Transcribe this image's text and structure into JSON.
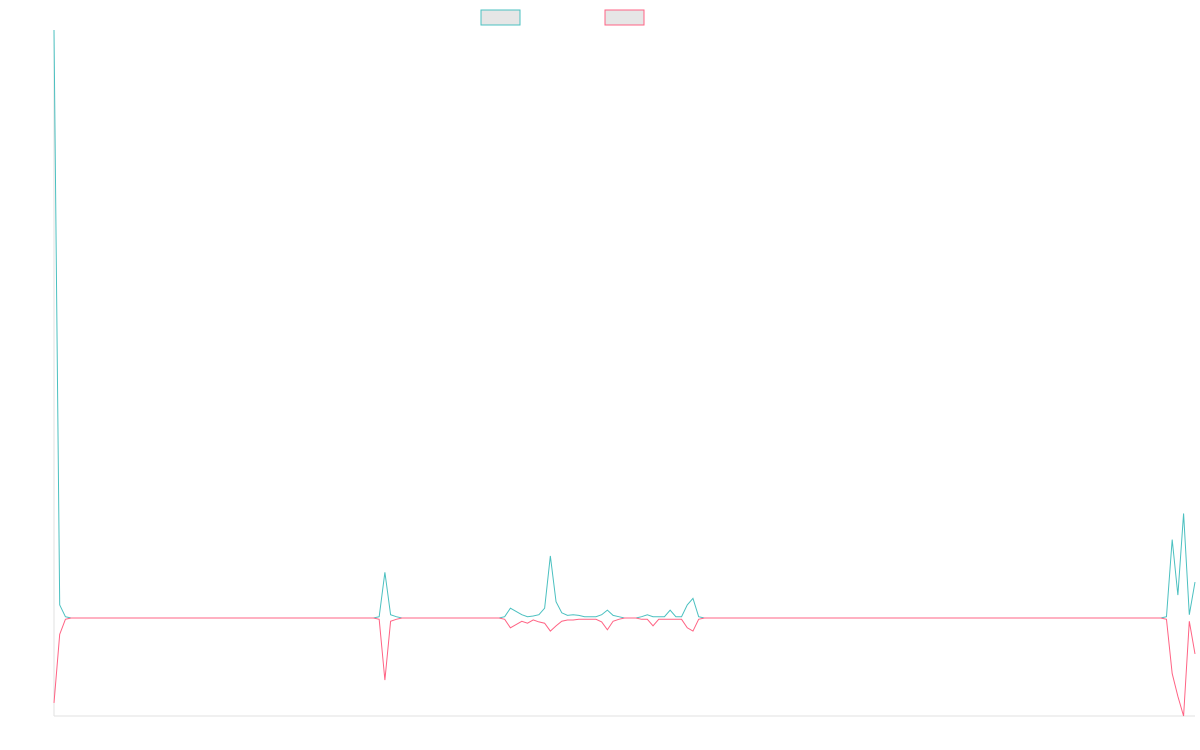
{
  "chart_data": {
    "type": "line",
    "title": "",
    "xlabel": "",
    "ylabel": "",
    "grid": false,
    "legend_position": "top-center",
    "ylim": [
      -1.5,
      9.0
    ],
    "x_count": 201,
    "series": [
      {
        "color": "#4bc0c0",
        "legend_fill": "#e6e6e6",
        "values_sparse": [
          [
            0,
            9.0
          ],
          [
            1,
            0.2
          ],
          [
            2,
            0.02
          ],
          [
            57,
            0.02
          ],
          [
            58,
            0.7
          ],
          [
            59,
            0.05
          ],
          [
            60,
            0.02
          ],
          [
            79,
            0.02
          ],
          [
            80,
            0.15
          ],
          [
            81,
            0.1
          ],
          [
            82,
            0.05
          ],
          [
            83,
            0.02
          ],
          [
            84,
            0.03
          ],
          [
            85,
            0.05
          ],
          [
            86,
            0.15
          ],
          [
            87,
            0.95
          ],
          [
            88,
            0.25
          ],
          [
            89,
            0.08
          ],
          [
            90,
            0.04
          ],
          [
            91,
            0.05
          ],
          [
            92,
            0.04
          ],
          [
            93,
            0.02
          ],
          [
            94,
            0.02
          ],
          [
            95,
            0.02
          ],
          [
            96,
            0.05
          ],
          [
            97,
            0.12
          ],
          [
            98,
            0.04
          ],
          [
            99,
            0.02
          ],
          [
            103,
            0.02
          ],
          [
            104,
            0.05
          ],
          [
            105,
            0.02
          ],
          [
            106,
            0.02
          ],
          [
            107,
            0.02
          ],
          [
            108,
            0.12
          ],
          [
            109,
            0.02
          ],
          [
            110,
            0.02
          ],
          [
            111,
            0.2
          ],
          [
            112,
            0.3
          ],
          [
            113,
            0.02
          ],
          [
            195,
            0.02
          ],
          [
            196,
            1.2
          ],
          [
            197,
            0.35
          ],
          [
            198,
            1.6
          ],
          [
            199,
            0.05
          ],
          [
            200,
            0.55
          ]
        ]
      },
      {
        "color": "#ff6384",
        "legend_fill": "#e6e6e6",
        "values_sparse": [
          [
            0,
            -1.3
          ],
          [
            1,
            -0.25
          ],
          [
            2,
            -0.02
          ],
          [
            57,
            -0.02
          ],
          [
            58,
            -0.95
          ],
          [
            59,
            -0.05
          ],
          [
            60,
            -0.02
          ],
          [
            79,
            -0.02
          ],
          [
            80,
            -0.15
          ],
          [
            81,
            -0.1
          ],
          [
            82,
            -0.05
          ],
          [
            83,
            -0.08
          ],
          [
            84,
            -0.03
          ],
          [
            85,
            -0.06
          ],
          [
            86,
            -0.08
          ],
          [
            87,
            -0.2
          ],
          [
            88,
            -0.12
          ],
          [
            89,
            -0.05
          ],
          [
            90,
            -0.03
          ],
          [
            91,
            -0.03
          ],
          [
            92,
            -0.02
          ],
          [
            93,
            -0.02
          ],
          [
            94,
            -0.02
          ],
          [
            95,
            -0.02
          ],
          [
            96,
            -0.06
          ],
          [
            97,
            -0.18
          ],
          [
            98,
            -0.05
          ],
          [
            99,
            -0.02
          ],
          [
            103,
            -0.02
          ],
          [
            104,
            -0.02
          ],
          [
            105,
            -0.12
          ],
          [
            106,
            -0.02
          ],
          [
            107,
            -0.02
          ],
          [
            108,
            -0.02
          ],
          [
            109,
            -0.02
          ],
          [
            110,
            -0.02
          ],
          [
            111,
            -0.15
          ],
          [
            112,
            -0.2
          ],
          [
            113,
            -0.02
          ],
          [
            195,
            -0.02
          ],
          [
            196,
            -0.85
          ],
          [
            197,
            -1.2
          ],
          [
            198,
            -1.5
          ],
          [
            199,
            -0.05
          ],
          [
            200,
            -0.55
          ]
        ]
      }
    ]
  }
}
